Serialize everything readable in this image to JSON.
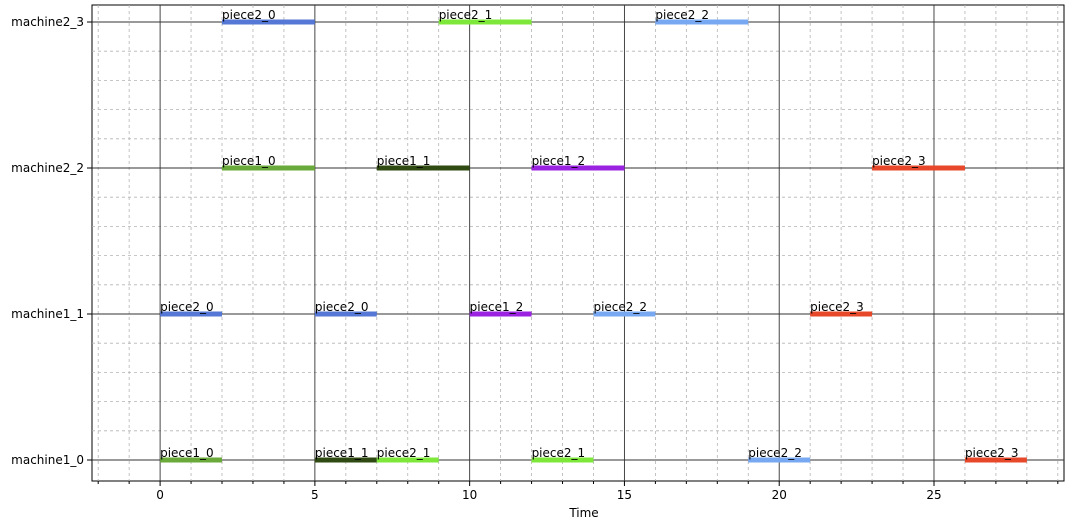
{
  "chart_data": {
    "type": "gantt",
    "title": "",
    "xlabel": "Time",
    "ylabel": "",
    "xlim": [
      -2.2,
      29.2
    ],
    "x_ticks": [
      0,
      5,
      10,
      15,
      20,
      25
    ],
    "x_minor_step": 1,
    "grid": "major solid, minor dashed",
    "machines": [
      "machine1_0",
      "machine1_1",
      "machine2_2",
      "machine2_3"
    ],
    "tasks": [
      {
        "machine": "machine1_0",
        "label": "piece1_0",
        "start": 0,
        "end": 2,
        "color": "#6aaa3a"
      },
      {
        "machine": "machine1_0",
        "label": "piece1_1",
        "start": 5,
        "end": 7,
        "color": "#2f4a12"
      },
      {
        "machine": "machine1_0",
        "label": "piece2_1",
        "start": 7,
        "end": 9,
        "color": "#7ee83a"
      },
      {
        "machine": "machine1_0",
        "label": "piece2_1",
        "start": 12,
        "end": 14,
        "color": "#7ee83a"
      },
      {
        "machine": "machine1_0",
        "label": "piece2_2",
        "start": 19,
        "end": 21,
        "color": "#79a8f2"
      },
      {
        "machine": "machine1_0",
        "label": "piece2_3",
        "start": 26,
        "end": 28,
        "color": "#e8482a"
      },
      {
        "machine": "machine1_1",
        "label": "piece2_0",
        "start": 0,
        "end": 2,
        "color": "#5577d6"
      },
      {
        "machine": "machine1_1",
        "label": "piece2_0",
        "start": 5,
        "end": 7,
        "color": "#5577d6"
      },
      {
        "machine": "machine1_1",
        "label": "piece1_2",
        "start": 10,
        "end": 12,
        "color": "#9a22e0"
      },
      {
        "machine": "machine1_1",
        "label": "piece2_2",
        "start": 14,
        "end": 16,
        "color": "#79a8f2"
      },
      {
        "machine": "machine1_1",
        "label": "piece2_3",
        "start": 21,
        "end": 23,
        "color": "#e8482a"
      },
      {
        "machine": "machine2_2",
        "label": "piece1_0",
        "start": 2,
        "end": 5,
        "color": "#6aaa3a"
      },
      {
        "machine": "machine2_2",
        "label": "piece1_1",
        "start": 7,
        "end": 10,
        "color": "#2f4a12"
      },
      {
        "machine": "machine2_2",
        "label": "piece1_2",
        "start": 12,
        "end": 15,
        "color": "#9a22e0"
      },
      {
        "machine": "machine2_2",
        "label": "piece2_3",
        "start": 23,
        "end": 26,
        "color": "#e8482a"
      },
      {
        "machine": "machine2_3",
        "label": "piece2_0",
        "start": 2,
        "end": 5,
        "color": "#5577d6"
      },
      {
        "machine": "machine2_3",
        "label": "piece2_1",
        "start": 9,
        "end": 12,
        "color": "#7ee83a"
      },
      {
        "machine": "machine2_3",
        "label": "piece2_2",
        "start": 16,
        "end": 19,
        "color": "#79a8f2"
      }
    ]
  }
}
